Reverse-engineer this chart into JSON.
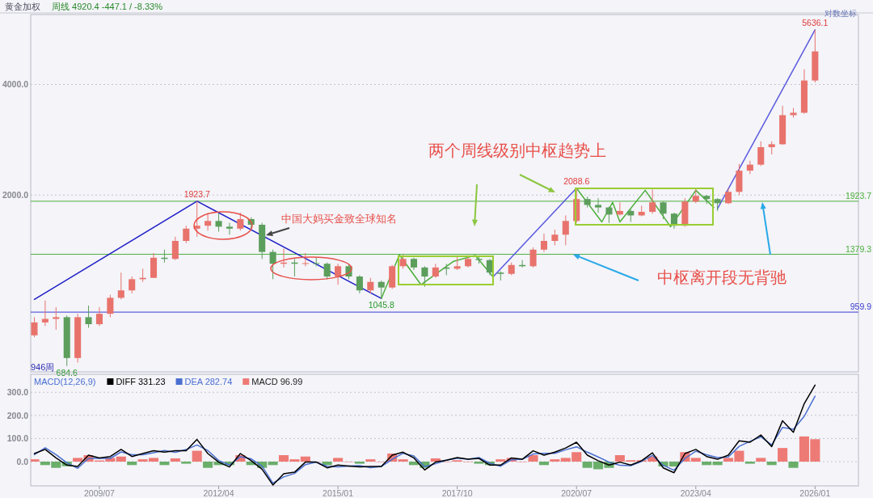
{
  "chart_data": [
    {
      "type": "candlestick",
      "title": "黄金加权",
      "subtitle": "周线  4920.4  -447.1 / -8.33%",
      "log": true,
      "grid": "y",
      "tick_labels": "y",
      "xlim": [
        "2007-12",
        "2027-01"
      ],
      "ylim": [
        660,
        6200
      ],
      "yticks": [
        {
          "value": 2000,
          "label": "2000.0"
        },
        {
          "value": 4000,
          "label": "4000.0"
        }
      ],
      "x": [
        "2008-01",
        "2008-04",
        "2008-07",
        "2008-10",
        "2009-01",
        "2009-04",
        "2009-07",
        "2009-10",
        "2010-01",
        "2010-04",
        "2010-07",
        "2010-10",
        "2011-01",
        "2011-04",
        "2011-07",
        "2011-10",
        "2012-01",
        "2012-04",
        "2012-07",
        "2012-10",
        "2013-01",
        "2013-04",
        "2013-07",
        "2013-10",
        "2014-01",
        "2014-04",
        "2014-07",
        "2014-10",
        "2015-01",
        "2015-04",
        "2015-07",
        "2015-10",
        "2016-01",
        "2016-04",
        "2016-07",
        "2016-10",
        "2017-01",
        "2017-04",
        "2017-07",
        "2017-10",
        "2018-01",
        "2018-04",
        "2018-07",
        "2018-10",
        "2019-01",
        "2019-04",
        "2019-07",
        "2019-10",
        "2020-01",
        "2020-04",
        "2020-07",
        "2020-10",
        "2021-01",
        "2021-04",
        "2021-07",
        "2021-10",
        "2022-01",
        "2022-04",
        "2022-07",
        "2022-10",
        "2023-01",
        "2023-04",
        "2023-07",
        "2023-10",
        "2024-01",
        "2024-04",
        "2024-07",
        "2024-10",
        "2025-01",
        "2025-04",
        "2025-07",
        "2025-10",
        "2026-01"
      ],
      "ohlc": [
        [
          830,
          930,
          820,
          900
        ],
        [
          900,
          1033,
          880,
          920
        ],
        [
          920,
          990,
          860,
          930
        ],
        [
          930,
          940,
          684.6,
          720
        ],
        [
          720,
          950,
          700,
          930
        ],
        [
          930,
          1000,
          870,
          890
        ],
        [
          890,
          990,
          880,
          950
        ],
        [
          950,
          1070,
          930,
          1050
        ],
        [
          1050,
          1230,
          1040,
          1100
        ],
        [
          1100,
          1200,
          1080,
          1180
        ],
        [
          1180,
          1260,
          1160,
          1190
        ],
        [
          1190,
          1390,
          1190,
          1350
        ],
        [
          1350,
          1420,
          1310,
          1340
        ],
        [
          1340,
          1540,
          1330,
          1500
        ],
        [
          1500,
          1650,
          1480,
          1620
        ],
        [
          1620,
          1923.7,
          1540,
          1650
        ],
        [
          1650,
          1790,
          1600,
          1700
        ],
        [
          1700,
          1780,
          1590,
          1640
        ],
        [
          1640,
          1680,
          1560,
          1620
        ],
        [
          1620,
          1790,
          1600,
          1720
        ],
        [
          1720,
          1740,
          1620,
          1660
        ],
        [
          1660,
          1680,
          1340,
          1400
        ],
        [
          1400,
          1420,
          1180,
          1300
        ],
        [
          1300,
          1430,
          1270,
          1310
        ],
        [
          1310,
          1340,
          1200,
          1300
        ],
        [
          1300,
          1390,
          1280,
          1305
        ],
        [
          1305,
          1350,
          1280,
          1300
        ],
        [
          1300,
          1310,
          1180,
          1200
        ],
        [
          1200,
          1300,
          1140,
          1280
        ],
        [
          1280,
          1300,
          1180,
          1200
        ],
        [
          1200,
          1210,
          1080,
          1100
        ],
        [
          1100,
          1190,
          1080,
          1160
        ],
        [
          1160,
          1170,
          1045.8,
          1120
        ],
        [
          1120,
          1290,
          1110,
          1280
        ],
        [
          1280,
          1375,
          1260,
          1340
        ],
        [
          1340,
          1350,
          1250,
          1270
        ],
        [
          1270,
          1280,
          1125,
          1200
        ],
        [
          1200,
          1300,
          1190,
          1270
        ],
        [
          1270,
          1300,
          1210,
          1260
        ],
        [
          1260,
          1360,
          1250,
          1280
        ],
        [
          1280,
          1370,
          1270,
          1340
        ],
        [
          1340,
          1370,
          1300,
          1330
        ],
        [
          1330,
          1340,
          1210,
          1230
        ],
        [
          1230,
          1240,
          1170,
          1220
        ],
        [
          1220,
          1310,
          1210,
          1290
        ],
        [
          1290,
          1330,
          1270,
          1280
        ],
        [
          1280,
          1440,
          1270,
          1420
        ],
        [
          1420,
          1570,
          1400,
          1500
        ],
        [
          1500,
          1610,
          1460,
          1560
        ],
        [
          1560,
          1760,
          1460,
          1700
        ],
        [
          1700,
          2088.6,
          1680,
          1950
        ],
        [
          1950,
          1980,
          1850,
          1880
        ],
        [
          1880,
          1960,
          1790,
          1850
        ],
        [
          1850,
          1860,
          1680,
          1770
        ],
        [
          1770,
          1910,
          1760,
          1810
        ],
        [
          1810,
          1830,
          1690,
          1760
        ],
        [
          1760,
          1870,
          1750,
          1800
        ],
        [
          1800,
          2070,
          1780,
          1910
        ],
        [
          1910,
          1920,
          1720,
          1780
        ],
        [
          1780,
          1790,
          1620,
          1650
        ],
        [
          1650,
          1960,
          1640,
          1920
        ],
        [
          1920,
          2080,
          1900,
          1990
        ],
        [
          1990,
          2000,
          1890,
          1950
        ],
        [
          1950,
          1960,
          1810,
          1900
        ],
        [
          1900,
          2090,
          1890,
          2040
        ],
        [
          2040,
          2430,
          2000,
          2330
        ],
        [
          2330,
          2480,
          2280,
          2420
        ],
        [
          2420,
          2800,
          2400,
          2700
        ],
        [
          2700,
          2800,
          2580,
          2750
        ],
        [
          2750,
          3500,
          2740,
          3300
        ],
        [
          3300,
          3450,
          3250,
          3350
        ],
        [
          3350,
          4400,
          3330,
          4100
        ],
        [
          4100,
          5636.1,
          4050,
          4920.4
        ]
      ],
      "colors": [
        "#e8736c",
        "#e8736c",
        "#e8736c",
        "#5c9e5c",
        "#e8736c",
        "#5c9e5c",
        "#e8736c",
        "#e8736c",
        "#e8736c",
        "#e8736c",
        "#e8736c",
        "#e8736c",
        "#5c9e5c",
        "#e8736c",
        "#e8736c",
        "#e8736c",
        "#e8736c",
        "#5c9e5c",
        "#5c9e5c",
        "#e8736c",
        "#5c9e5c",
        "#5c9e5c",
        "#5c9e5c",
        "#e8736c",
        "#5c9e5c",
        "#e8736c",
        "#5c9e5c",
        "#5c9e5c",
        "#e8736c",
        "#5c9e5c",
        "#5c9e5c",
        "#e8736c",
        "#5c9e5c",
        "#e8736c",
        "#e8736c",
        "#5c9e5c",
        "#5c9e5c",
        "#e8736c",
        "#5c9e5c",
        "#e8736c",
        "#e8736c",
        "#5c9e5c",
        "#5c9e5c",
        "#5c9e5c",
        "#e8736c",
        "#5c9e5c",
        "#e8736c",
        "#e8736c",
        "#e8736c",
        "#e8736c",
        "#e8736c",
        "#5c9e5c",
        "#5c9e5c",
        "#5c9e5c",
        "#e8736c",
        "#5c9e5c",
        "#e8736c",
        "#e8736c",
        "#5c9e5c",
        "#5c9e5c",
        "#e8736c",
        "#e8736c",
        "#5c9e5c",
        "#5c9e5c",
        "#e8736c",
        "#e8736c",
        "#e8736c",
        "#e8736c",
        "#e8736c",
        "#e8736c",
        "#e8736c",
        "#e8736c",
        "#e8736c"
      ],
      "series": [
        {
          "type": "line",
          "color": "#1f1fc8",
          "x": [
            "2008-01",
            "2011-10",
            "2016-01"
          ],
          "values": [
            1040,
            1923.7,
            1045.8
          ]
        },
        {
          "type": "line",
          "color": "#5a5ae0",
          "x": [
            "2018-08",
            "2020-07"
          ],
          "values": [
            1200,
            2088.6
          ]
        },
        {
          "type": "line",
          "color": "#5a5ae0",
          "x": [
            "2023-10",
            "2026-01"
          ],
          "values": [
            1835,
            5636.1
          ]
        },
        {
          "type": "line",
          "color": "#4caf3a",
          "x": [
            "2016-01",
            "2016-06",
            "2016-12",
            "2017-09",
            "2018-03",
            "2018-08"
          ],
          "values": [
            1045.8,
            1375,
            1140,
            1320,
            1370,
            1195
          ]
        },
        {
          "type": "line",
          "color": "#4caf3a",
          "x": [
            "2020-07",
            "2021-02",
            "2021-05",
            "2021-07",
            "2022-02",
            "2022-09",
            "2023-04",
            "2023-09"
          ],
          "values": [
            2088.6,
            1690,
            1910,
            1690,
            2060,
            1640,
            2060,
            1850
          ]
        }
      ],
      "ref_lines": [
        {
          "axis": "y",
          "value": 959.9,
          "label": "959.9",
          "color": "#3b3bd0"
        },
        {
          "axis": "y",
          "value": 1923.7,
          "label": "1923.7",
          "color": "#4caf3a"
        },
        {
          "axis": "y",
          "value": 1379.3,
          "label": "1379.3",
          "color": "#4caf3a"
        }
      ],
      "annotations": [
        {
          "text": "1923.7",
          "x": "2011-10",
          "y": 1923.7
        },
        {
          "text": "1045.8",
          "x": "2016-01",
          "y": 1045.8
        },
        {
          "text": "684.6",
          "x": "2008-10",
          "y": 684.6
        },
        {
          "text": "2088.6",
          "x": "2020-07",
          "y": 2088.6
        },
        {
          "text": "5636.1",
          "x": "2026-01",
          "y": 5636.1
        },
        "中国大妈买金致全球知名",
        "两个周线级别中枢趋势上",
        {
          "text": "中枢离开段无背驰",
          "x": "2020-06",
          "y": 1379.3
        },
        "946周",
        "对数坐标"
      ]
    },
    {
      "type": "line",
      "title": "MACD(12,26,9)",
      "grid": "y",
      "legend": "top left",
      "xlim": [
        "2007-12",
        "2027-01"
      ],
      "ylim": [
        -105,
        378
      ],
      "yticks": [
        {
          "value": 0,
          "label": "0.0"
        },
        {
          "value": 100,
          "label": "100.0"
        },
        {
          "value": 200,
          "label": "200.0"
        },
        {
          "value": 300,
          "label": "300.0"
        }
      ],
      "xticks": [
        {
          "value": "2009-07",
          "label": "2009/07"
        },
        {
          "value": "2012-04",
          "label": "2012/04"
        },
        {
          "value": "2015-01",
          "label": "2015/01"
        },
        {
          "value": "2017-10",
          "label": "2017/10"
        },
        {
          "value": "2020-07",
          "label": "2020/07"
        },
        {
          "value": "2023-04",
          "label": "2023/04"
        },
        {
          "value": "2026-01",
          "label": "2026/01"
        }
      ],
      "x": [
        "2008-01",
        "2008-04",
        "2008-07",
        "2008-10",
        "2009-01",
        "2009-04",
        "2009-07",
        "2009-10",
        "2010-01",
        "2010-04",
        "2010-07",
        "2010-10",
        "2011-01",
        "2011-04",
        "2011-07",
        "2011-10",
        "2012-01",
        "2012-04",
        "2012-07",
        "2012-10",
        "2013-01",
        "2013-04",
        "2013-07",
        "2013-10",
        "2014-01",
        "2014-04",
        "2014-07",
        "2014-10",
        "2015-01",
        "2015-04",
        "2015-07",
        "2015-10",
        "2016-01",
        "2016-04",
        "2016-07",
        "2016-10",
        "2017-01",
        "2017-04",
        "2017-07",
        "2017-10",
        "2018-01",
        "2018-04",
        "2018-07",
        "2018-10",
        "2019-01",
        "2019-04",
        "2019-07",
        "2019-10",
        "2020-01",
        "2020-04",
        "2020-07",
        "2020-10",
        "2021-01",
        "2021-04",
        "2021-07",
        "2021-10",
        "2022-01",
        "2022-04",
        "2022-07",
        "2022-10",
        "2023-01",
        "2023-04",
        "2023-07",
        "2023-10",
        "2024-01",
        "2024-04",
        "2024-07",
        "2024-10",
        "2025-01",
        "2025-04",
        "2025-07",
        "2025-10",
        "2026-01"
      ],
      "series": [
        {
          "name": "MACD 96.99",
          "type": "bar",
          "color": "#ee7a76",
          "values": [
            10,
            -15,
            -27,
            -20,
            16,
            28,
            5,
            16,
            22,
            -15,
            10,
            16,
            -15,
            14,
            -9,
            47,
            -27,
            -15,
            -15,
            28,
            -15,
            -27,
            -15,
            28,
            10,
            22,
            0,
            -15,
            16,
            0,
            -9,
            10,
            0,
            35,
            10,
            -15,
            -27,
            14,
            0,
            6,
            0,
            -9,
            -15,
            10,
            16,
            0,
            28,
            -15,
            10,
            16,
            41,
            -27,
            -33,
            -27,
            28,
            6,
            6,
            22,
            -21,
            -21,
            41,
            16,
            -15,
            -15,
            16,
            47,
            -9,
            16,
            -15,
            59,
            -27,
            109,
            97
          ],
          "colors": [
            "#ee7a76",
            "#6aae6a",
            "#6aae6a",
            "#6aae6a",
            "#ee7a76",
            "#ee7a76",
            "#ee7a76",
            "#ee7a76",
            "#ee7a76",
            "#6aae6a",
            "#ee7a76",
            "#ee7a76",
            "#6aae6a",
            "#ee7a76",
            "#6aae6a",
            "#ee7a76",
            "#6aae6a",
            "#6aae6a",
            "#6aae6a",
            "#ee7a76",
            "#6aae6a",
            "#6aae6a",
            "#6aae6a",
            "#ee7a76",
            "#ee7a76",
            "#ee7a76",
            "#ee7a76",
            "#6aae6a",
            "#ee7a76",
            "#ee7a76",
            "#6aae6a",
            "#ee7a76",
            "#ee7a76",
            "#ee7a76",
            "#ee7a76",
            "#6aae6a",
            "#6aae6a",
            "#ee7a76",
            "#ee7a76",
            "#ee7a76",
            "#ee7a76",
            "#6aae6a",
            "#6aae6a",
            "#ee7a76",
            "#ee7a76",
            "#ee7a76",
            "#ee7a76",
            "#6aae6a",
            "#ee7a76",
            "#ee7a76",
            "#ee7a76",
            "#6aae6a",
            "#6aae6a",
            "#6aae6a",
            "#ee7a76",
            "#ee7a76",
            "#ee7a76",
            "#ee7a76",
            "#6aae6a",
            "#6aae6a",
            "#ee7a76",
            "#ee7a76",
            "#6aae6a",
            "#6aae6a",
            "#ee7a76",
            "#ee7a76",
            "#6aae6a",
            "#ee7a76",
            "#6aae6a",
            "#ee7a76",
            "#6aae6a",
            "#ee7a76",
            "#ee7a76"
          ]
        },
        {
          "name": "DEA 282.74",
          "type": "line",
          "color": "#4a6fd0",
          "values": [
            30,
            60,
            30,
            -5,
            -29,
            14,
            14,
            14,
            42,
            30,
            30,
            39,
            48,
            40,
            52,
            72,
            48,
            5,
            -15,
            21,
            12,
            -20,
            -93,
            -66,
            -51,
            -13,
            -2,
            -20,
            -23,
            -19,
            -18,
            -26,
            -21,
            10,
            36,
            24,
            -22,
            -9,
            6,
            15,
            10,
            18,
            -7,
            -20,
            8,
            10,
            33,
            36,
            36,
            51,
            64,
            41,
            20,
            -2,
            -16,
            -18,
            1,
            27,
            -16,
            -37,
            14,
            45,
            30,
            18,
            20,
            66,
            88,
            107,
            72,
            148,
            140,
            196,
            283
          ]
        },
        {
          "name": "DIFF 331.23",
          "type": "line",
          "color": "#000000",
          "values": [
            35,
            53,
            16,
            -15,
            -21,
            28,
            16,
            22,
            53,
            22,
            35,
            47,
            41,
            47,
            47,
            96,
            35,
            -2,
            -23,
            35,
            4,
            -33,
            -101,
            -52,
            -46,
            -2,
            -2,
            -27,
            -15,
            -19,
            -23,
            -21,
            -21,
            28,
            41,
            16,
            -36,
            -2,
            6,
            18,
            10,
            14,
            -15,
            -15,
            16,
            10,
            47,
            28,
            41,
            59,
            84,
            28,
            4,
            -15,
            -2,
            -15,
            4,
            38,
            -27,
            -48,
            35,
            53,
            22,
            10,
            28,
            90,
            84,
            115,
            65,
            177,
            127,
            251,
            331
          ]
        }
      ]
    }
  ]
}
